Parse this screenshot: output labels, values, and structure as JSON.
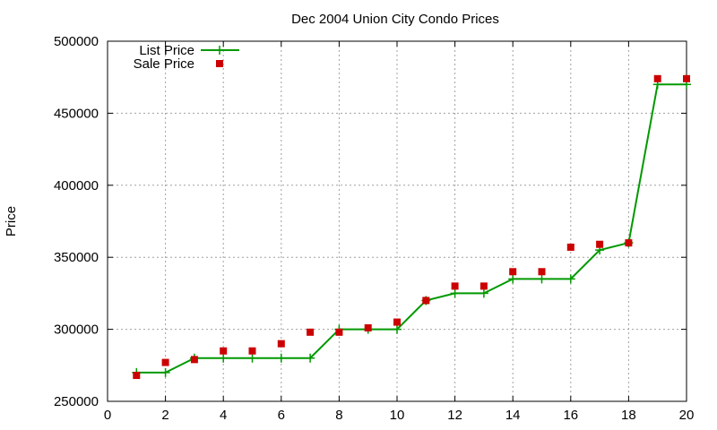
{
  "chart_data": {
    "type": "line",
    "title": "Dec 2004 Union City Condo Prices",
    "xlabel": "",
    "ylabel": "Price",
    "xlim": [
      0,
      20
    ],
    "ylim": [
      250000,
      500000
    ],
    "xticks": [
      0,
      2,
      4,
      6,
      8,
      10,
      12,
      14,
      16,
      18,
      20
    ],
    "yticks": [
      250000,
      300000,
      350000,
      400000,
      450000,
      500000
    ],
    "grid": true,
    "legend_position": "top-left",
    "x": [
      1,
      2,
      3,
      4,
      5,
      6,
      7,
      8,
      9,
      10,
      11,
      12,
      13,
      14,
      15,
      16,
      17,
      18,
      19,
      20
    ],
    "series": [
      {
        "name": "List Price",
        "style": "line-with-plus-markers",
        "color": "#009900",
        "values": [
          270000,
          270000,
          280000,
          280000,
          280000,
          280000,
          280000,
          300000,
          300000,
          300000,
          320000,
          325000,
          325000,
          335000,
          335000,
          335000,
          355000,
          360000,
          470000,
          470000
        ]
      },
      {
        "name": "Sale Price",
        "style": "square-markers",
        "color": "#cc0000",
        "values": [
          268000,
          277000,
          279000,
          285000,
          285000,
          290000,
          298000,
          298000,
          301000,
          305000,
          320000,
          330000,
          330000,
          340000,
          340000,
          357000,
          359000,
          360000,
          474000,
          474000
        ]
      }
    ]
  }
}
